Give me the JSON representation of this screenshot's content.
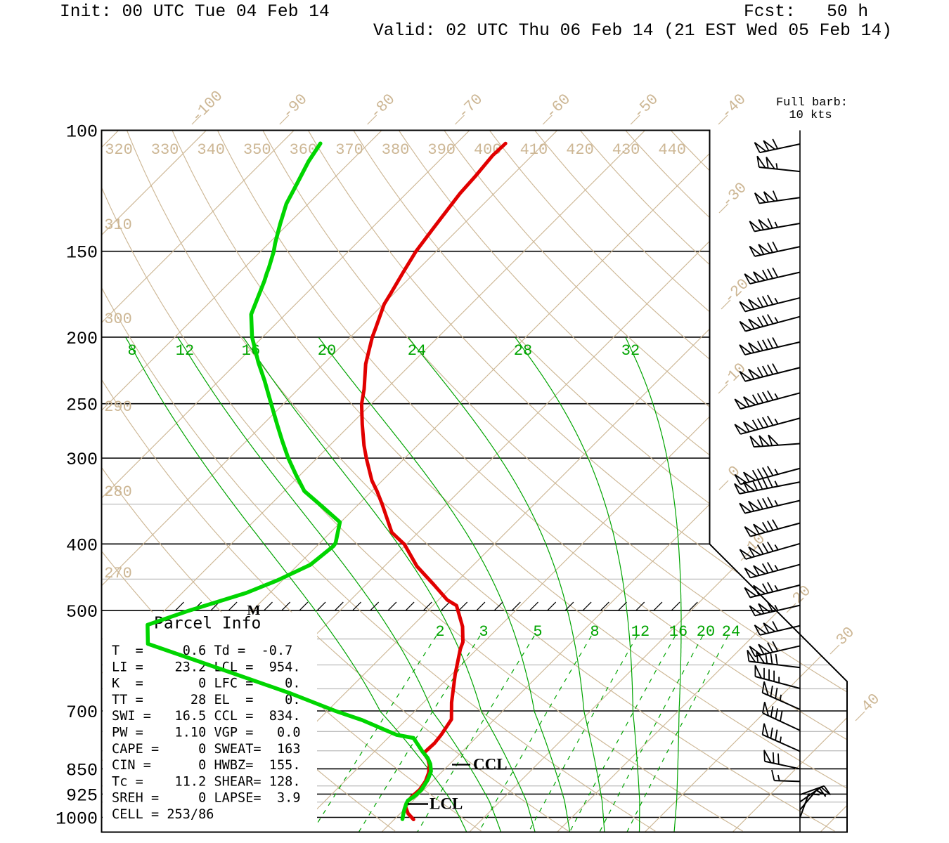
{
  "header": {
    "init": "Init: 00 UTC Tue 04 Feb 14",
    "fcst": "Fcst:   50 h",
    "valid": "Valid: 02 UTC Thu 06 Feb 14 (21 EST Wed 05 Feb 14)"
  },
  "legend": {
    "line1": "Full barb:",
    "line2": "10 kts"
  },
  "parcel_info": {
    "title": "Parcel Info",
    "rows": [
      "T  =     0.6 Td =  -0.7",
      "LI =    23.2 LCL =  954.",
      "K  =       0 LFC =    0.",
      "TT =      28 EL  =    0.",
      "SWI =   16.5 CCL =  834.",
      "PW =    1.10 VGP =   0.0",
      "CAPE =     0 SWEAT=  163",
      "CIN =      0 HWBZ=  155.",
      "Tc =    11.2 SHEAR= 128.",
      "SREH =     0 LAPSE=  3.9",
      "CELL = 253/86"
    ]
  },
  "markers": {
    "m_label": "M",
    "lcl": {
      "label": "LCL",
      "pressure": 954
    },
    "ccl": {
      "label": "CCL",
      "pressure": 834
    }
  },
  "chart_data": {
    "type": "skewt-log-p-sounding",
    "pressure_axis_hpa": [
      100,
      150,
      200,
      250,
      300,
      400,
      500,
      700,
      850,
      925,
      1000
    ],
    "minor_pressure_lines_hpa": [
      350,
      450,
      550,
      600,
      650,
      750,
      800,
      900,
      950
    ],
    "isotherm_labels_top_c": [
      -100,
      -90,
      -80,
      -70,
      -60,
      -50,
      -40
    ],
    "isotherm_labels_right_c": [
      -30,
      -20,
      -10,
      0
    ],
    "isotherm_labels_diag_c": [
      10,
      20,
      30,
      40
    ],
    "isotherms_c_range": [
      -110,
      50,
      10
    ],
    "dry_adiabats_k": [
      270,
      280,
      290,
      300,
      310,
      320,
      330,
      340,
      350,
      360,
      370,
      380,
      390,
      400,
      410,
      420,
      430,
      440
    ],
    "dry_adiabat_labels_top_k": [
      320,
      330,
      340,
      350,
      360,
      370,
      380,
      390,
      400,
      410,
      420,
      430,
      440
    ],
    "dry_adiabat_labels_left_k": [
      310,
      300,
      290,
      280,
      270
    ],
    "moist_adiabats_c": [
      8,
      12,
      16,
      20,
      24,
      28,
      32
    ],
    "mixing_ratios_gkg": [
      2,
      3,
      5,
      8,
      12,
      16,
      20,
      24
    ],
    "temperature_profile_p_t": [
      [
        104.5,
        -64.4
      ],
      [
        108.8,
        -64.5
      ],
      [
        116.7,
        -64.1
      ],
      [
        123.5,
        -63.9
      ],
      [
        133.1,
        -63.3
      ],
      [
        139.9,
        -62.9
      ],
      [
        150.1,
        -62.3
      ],
      [
        160.7,
        -61.4
      ],
      [
        172.5,
        -60.4
      ],
      [
        179.1,
        -59.9
      ],
      [
        194.5,
        -58.1
      ],
      [
        200.0,
        -57.5
      ],
      [
        218.8,
        -55.2
      ],
      [
        238.1,
        -52.5
      ],
      [
        250.2,
        -51.1
      ],
      [
        267.9,
        -48.7
      ],
      [
        287.5,
        -46.1
      ],
      [
        300.6,
        -44.3
      ],
      [
        323.4,
        -41.2
      ],
      [
        335.8,
        -39.3
      ],
      [
        350.3,
        -37.3
      ],
      [
        384.9,
        -33.0
      ],
      [
        400.6,
        -30.2
      ],
      [
        431.0,
        -26.3
      ],
      [
        458.2,
        -22.3
      ],
      [
        482.5,
        -19.0
      ],
      [
        491.7,
        -17.3
      ],
      [
        527.7,
        -14.2
      ],
      [
        555.8,
        -12.4
      ],
      [
        569.0,
        -11.9
      ],
      [
        619.3,
        -9.6
      ],
      [
        680.5,
        -6.8
      ],
      [
        720.0,
        -4.9
      ],
      [
        758.3,
        -4.3
      ],
      [
        780.1,
        -4.1
      ],
      [
        802.4,
        -4.2
      ],
      [
        806.2,
        -4.2
      ],
      [
        823.5,
        -3.0
      ],
      [
        839.1,
        -2.2
      ],
      [
        861.1,
        -1.4
      ],
      [
        885.8,
        -0.8
      ],
      [
        911.2,
        -0.5
      ],
      [
        932.9,
        -0.6
      ],
      [
        950.6,
        -0.5
      ],
      [
        964.2,
        -0.2
      ],
      [
        987.1,
        0.9
      ],
      [
        1007.1,
        2.2
      ]
    ],
    "dewpoint_profile_p_t": [
      [
        104.5,
        -85.5
      ],
      [
        111.0,
        -84.8
      ],
      [
        121.7,
        -83.3
      ],
      [
        127.9,
        -82.5
      ],
      [
        136.9,
        -80.9
      ],
      [
        145.9,
        -79.3
      ],
      [
        150.1,
        -78.5
      ],
      [
        158.5,
        -77.2
      ],
      [
        161.5,
        -76.8
      ],
      [
        165.7,
        -76.2
      ],
      [
        185.3,
        -73.9
      ],
      [
        200.0,
        -71.2
      ],
      [
        217.7,
        -67.6
      ],
      [
        231.5,
        -64.8
      ],
      [
        250.2,
        -61.4
      ],
      [
        267.9,
        -58.4
      ],
      [
        283.4,
        -55.9
      ],
      [
        299.9,
        -53.3
      ],
      [
        317.3,
        -50.5
      ],
      [
        335.0,
        -47.7
      ],
      [
        352.8,
        -43.9
      ],
      [
        371.8,
        -40.1
      ],
      [
        398.8,
        -38.2
      ],
      [
        402.9,
        -38.1
      ],
      [
        429.0,
        -38.6
      ],
      [
        452.1,
        -40.6
      ],
      [
        471.3,
        -42.7
      ],
      [
        500.1,
        -47.2
      ],
      [
        524.6,
        -50.3
      ],
      [
        559.0,
        -48.1
      ],
      [
        609.8,
        -36.6
      ],
      [
        660.0,
        -26.2
      ],
      [
        700.5,
        -19.0
      ],
      [
        721.7,
        -15.0
      ],
      [
        758.3,
        -9.4
      ],
      [
        766.4,
        -7.1
      ],
      [
        802.4,
        -4.5
      ],
      [
        819.6,
        -3.2
      ],
      [
        836.4,
        -2.2
      ],
      [
        857.1,
        -1.3
      ],
      [
        881.7,
        -0.7
      ],
      [
        911.2,
        -0.3
      ],
      [
        926.3,
        -0.3
      ],
      [
        935.1,
        -0.4
      ],
      [
        945.1,
        -0.6
      ],
      [
        956.3,
        -0.4
      ],
      [
        973.3,
        0.0
      ],
      [
        991.8,
        0.5
      ],
      [
        1005.9,
        0.9
      ]
    ],
    "wind_barbs_p_dir_kt": [
      [
        104.7,
        258,
        110
      ],
      [
        114.8,
        276,
        105
      ],
      [
        125.3,
        262,
        110
      ],
      [
        136.6,
        260,
        115
      ],
      [
        147.7,
        258,
        120
      ],
      [
        160.9,
        257,
        130
      ],
      [
        175.3,
        256,
        135
      ],
      [
        186.7,
        255,
        135
      ],
      [
        203.3,
        257,
        140
      ],
      [
        221.5,
        256,
        140
      ],
      [
        241.1,
        255,
        145
      ],
      [
        262.4,
        255,
        145
      ],
      [
        285.8,
        266,
        150
      ],
      [
        310.5,
        255,
        145
      ],
      [
        325.0,
        259,
        145
      ],
      [
        345.8,
        257,
        135
      ],
      [
        373.0,
        255,
        130
      ],
      [
        399.5,
        254,
        135
      ],
      [
        428.5,
        255,
        125
      ],
      [
        459.1,
        256,
        125
      ],
      [
        491.3,
        257,
        115
      ],
      [
        526.2,
        257,
        110
      ],
      [
        562.9,
        257,
        120
      ],
      [
        605.3,
        277,
        130
      ],
      [
        649.2,
        285,
        85
      ],
      [
        696.5,
        294,
        75
      ],
      [
        747.3,
        295,
        80
      ],
      [
        801.5,
        294,
        75
      ],
      [
        849.9,
        282,
        70
      ],
      [
        886.6,
        272,
        15
      ],
      [
        927.0,
        70,
        20
      ],
      [
        949.5,
        55,
        15
      ],
      [
        975.1,
        40,
        10
      ],
      [
        1001.2,
        20,
        10
      ]
    ],
    "grid": true,
    "colors": {
      "temperature": "#e10000",
      "dewpoint": "#00d500",
      "moist_lines": "#00a400",
      "background_lines": "#cdb795",
      "minor_pressure": "#bcbcbc",
      "axis": "#000000"
    }
  }
}
